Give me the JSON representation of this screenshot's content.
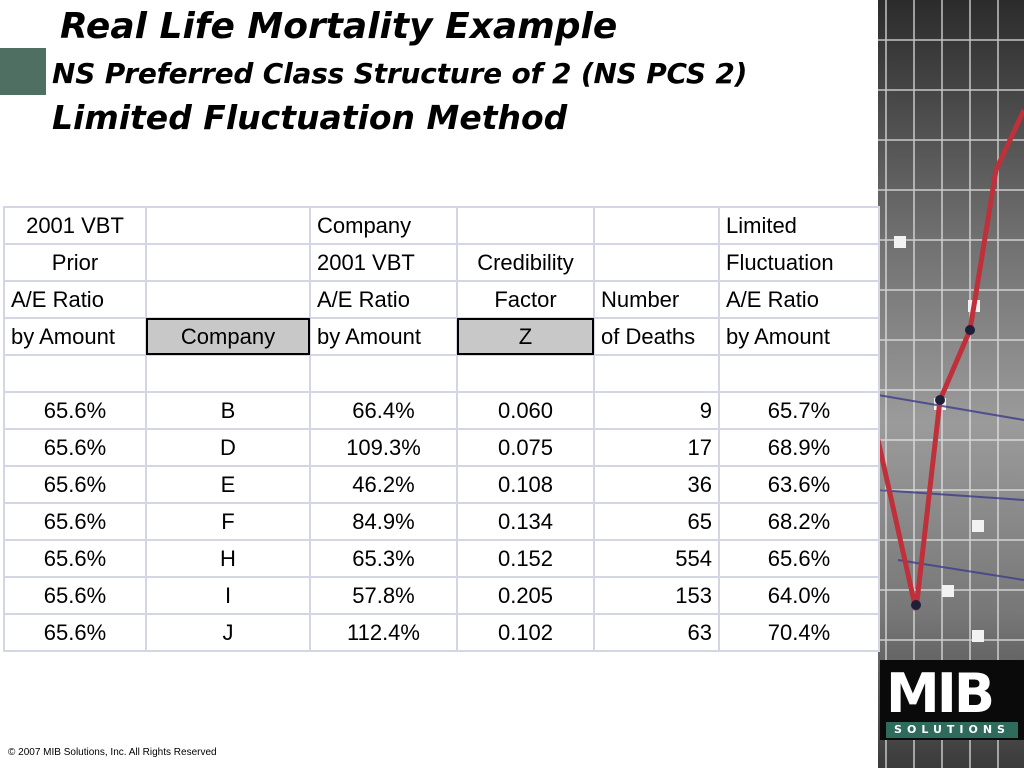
{
  "slide": {
    "title": "Real Life Mortality Example",
    "subtitle": "NS Preferred Class Structure of 2 (NS PCS 2)",
    "method": "Limited Fluctuation Method"
  },
  "table": {
    "headers": [
      [
        "2001 VBT",
        "",
        "Company",
        "",
        "",
        "Limited"
      ],
      [
        "Prior",
        "",
        "2001 VBT",
        "Credibility",
        "",
        "Fluctuation"
      ],
      [
        "A/E Ratio",
        "",
        "A/E Ratio",
        "Factor",
        "Number",
        "A/E Ratio"
      ],
      [
        "by Amount",
        "Company",
        "by Amount",
        "Z",
        "of Deaths",
        "by Amount"
      ]
    ],
    "rows": [
      [
        "65.6%",
        "B",
        "66.4%",
        "0.060",
        "9",
        "65.7%"
      ],
      [
        "65.6%",
        "D",
        "109.3%",
        "0.075",
        "17",
        "68.9%"
      ],
      [
        "65.6%",
        "E",
        "46.2%",
        "0.108",
        "36",
        "63.6%"
      ],
      [
        "65.6%",
        "F",
        "84.9%",
        "0.134",
        "65",
        "68.2%"
      ],
      [
        "65.6%",
        "H",
        "65.3%",
        "0.152",
        "554",
        "65.6%"
      ],
      [
        "65.6%",
        "I",
        "57.8%",
        "0.205",
        "153",
        "64.0%"
      ],
      [
        "65.6%",
        "J",
        "112.4%",
        "0.102",
        "63",
        "70.4%"
      ]
    ]
  },
  "logo": {
    "main": "MIB",
    "sub": "SOLUTIONS"
  },
  "footer": "© 2007 MIB Solutions, Inc. All Rights Reserved",
  "colors": {
    "accent": "#4f6f63",
    "highlight": "#c8c8c8",
    "grid": "#d4d6e4",
    "logo_band": "#2e6b5c"
  }
}
